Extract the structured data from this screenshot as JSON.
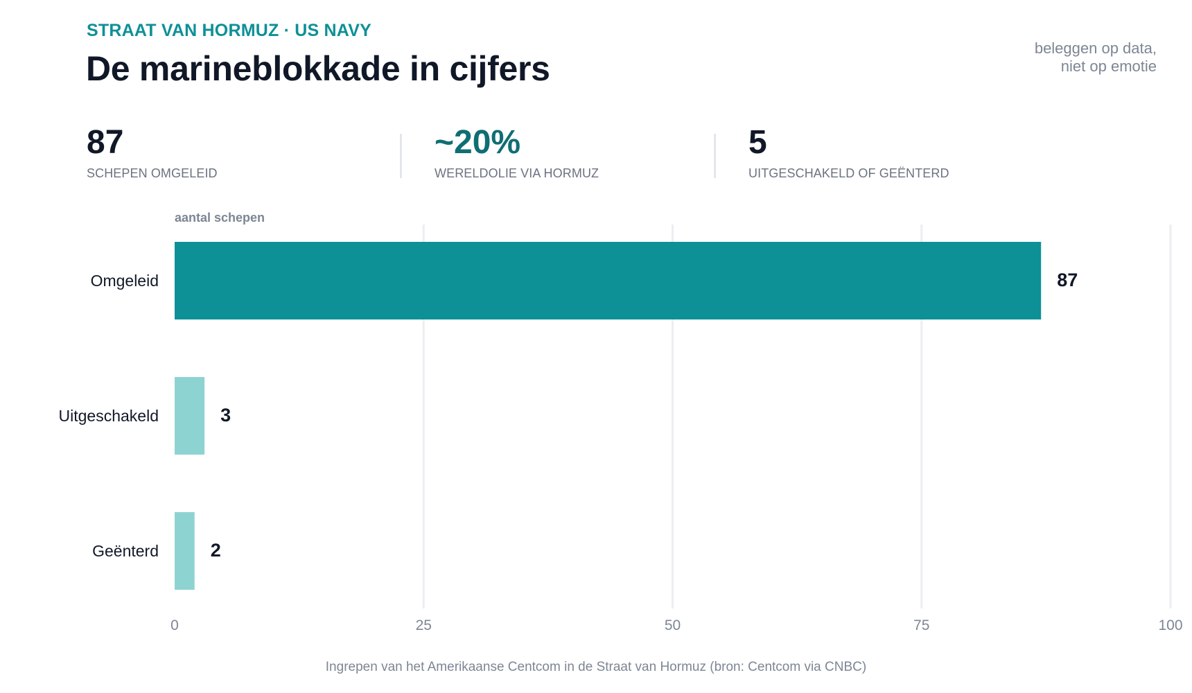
{
  "header": {
    "kicker": "STRAAT VAN HORMUZ · US NAVY",
    "title": "De marineblokkade in cijfers",
    "tagline_line1": "beleggen op data,",
    "tagline_line2": "niet op emotie"
  },
  "kpis": [
    {
      "value": "87",
      "label": "SCHEPEN OMGELEID",
      "color": "#111827"
    },
    {
      "value": "~20%",
      "label": "WERELDOLIE VIA HORMUZ",
      "color": "#0f6e73"
    },
    {
      "value": "5",
      "label": "UITGESCHAKELD OF GEËNTERD",
      "color": "#111827"
    }
  ],
  "chart_data": {
    "type": "bar",
    "orientation": "horizontal",
    "title": "",
    "xlabel": "",
    "ylabel": "aantal schepen",
    "categories": [
      "Omgeleid",
      "Uitgeschakeld",
      "Geënterd"
    ],
    "values": [
      87,
      3,
      2
    ],
    "bar_colors": [
      "#0e9097",
      "#8dd3d2",
      "#8dd3d2"
    ],
    "xlim": [
      0,
      100
    ],
    "xticks": [
      0,
      25,
      50,
      75,
      100
    ],
    "grid": "vertical",
    "legend": "none"
  },
  "footer": {
    "source": "Ingrepen van het Amerikaanse Centcom in de Straat van Hormuz (bron: Centcom via CNBC)"
  },
  "colors": {
    "accent": "#0e9097",
    "accent_light": "#8dd3d2",
    "grid": "#eceef2",
    "muted_text": "#7d8694"
  }
}
